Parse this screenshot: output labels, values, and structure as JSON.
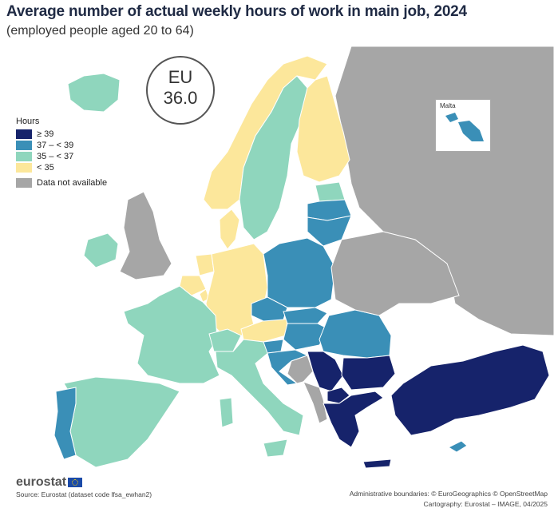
{
  "title": "Average number of actual weekly hours of work in main job, 2024",
  "subtitle": "(employed people aged 20 to 64)",
  "eu_average": {
    "label": "EU",
    "value": "36.0"
  },
  "legend": {
    "title": "Hours",
    "classes": [
      {
        "label": "≥ 39",
        "color": "#16236b"
      },
      {
        "label": "37 – < 39",
        "color": "#3a8fb7"
      },
      {
        "label": "35 – < 37",
        "color": "#8fd6bd"
      },
      {
        "label": "< 35",
        "color": "#fce79b"
      }
    ],
    "na": {
      "label": "Data not available",
      "color": "#a6a6a6"
    }
  },
  "inset_label": "Malta",
  "colors": {
    "sea": "#ffffff",
    "non_eu": "#d6d6d6",
    "border": "#ffffff"
  },
  "regions": [
    {
      "name": "Iceland",
      "class": "35 – < 37"
    },
    {
      "name": "Norway",
      "class": "< 35"
    },
    {
      "name": "Sweden",
      "class": "35 – < 37"
    },
    {
      "name": "Finland",
      "class": "< 35"
    },
    {
      "name": "Estonia",
      "class": "35 – < 37"
    },
    {
      "name": "Latvia",
      "class": "37 – < 39"
    },
    {
      "name": "Lithuania",
      "class": "37 – < 39"
    },
    {
      "name": "Denmark",
      "class": "< 35"
    },
    {
      "name": "Ireland",
      "class": "35 – < 37"
    },
    {
      "name": "Netherlands",
      "class": "< 35"
    },
    {
      "name": "Belgium",
      "class": "< 35"
    },
    {
      "name": "Luxembourg",
      "class": "< 35"
    },
    {
      "name": "Germany",
      "class": "< 35"
    },
    {
      "name": "Austria",
      "class": "< 35"
    },
    {
      "name": "Switzerland",
      "class": "35 – < 37"
    },
    {
      "name": "France",
      "class": "35 – < 37"
    },
    {
      "name": "Spain",
      "class": "35 – < 37"
    },
    {
      "name": "Portugal",
      "class": "37 – < 39"
    },
    {
      "name": "Italy",
      "class": "35 – < 37"
    },
    {
      "name": "Poland",
      "class": "37 – < 39"
    },
    {
      "name": "Czechia",
      "class": "37 – < 39"
    },
    {
      "name": "Slovakia",
      "class": "37 – < 39"
    },
    {
      "name": "Hungary",
      "class": "37 – < 39"
    },
    {
      "name": "Slovenia",
      "class": "37 – < 39"
    },
    {
      "name": "Croatia",
      "class": "37 – < 39"
    },
    {
      "name": "Romania",
      "class": "37 – < 39"
    },
    {
      "name": "Serbia",
      "class": "≥ 39"
    },
    {
      "name": "Bulgaria",
      "class": "≥ 39"
    },
    {
      "name": "North Macedonia",
      "class": "≥ 39"
    },
    {
      "name": "Greece",
      "class": "≥ 39"
    },
    {
      "name": "Türkiye",
      "class": "≥ 39"
    },
    {
      "name": "Cyprus",
      "class": "37 – < 39"
    },
    {
      "name": "Malta",
      "class": "37 – < 39"
    },
    {
      "name": "Bosnia and Herzegovina",
      "class": "Data not available"
    },
    {
      "name": "Montenegro",
      "class": "Data not available"
    },
    {
      "name": "Albania",
      "class": "Data not available"
    },
    {
      "name": "Kosovo",
      "class": "Data not available"
    },
    {
      "name": "Belarus",
      "class": "Data not available"
    },
    {
      "name": "Ukraine",
      "class": "Data not available"
    },
    {
      "name": "Moldova",
      "class": "Data not available"
    },
    {
      "name": "Russia",
      "class": "Data not available"
    },
    {
      "name": "United Kingdom",
      "class": "Data not available"
    }
  ],
  "logo": "eurostat",
  "source": "Source: Eurostat (dataset code lfsa_ewhan2)",
  "credits": {
    "boundaries": "Administrative boundaries: © EuroGeographics © OpenStreetMap",
    "cartography": "Cartography: Eurostat – IMAGE, 04/2025"
  }
}
